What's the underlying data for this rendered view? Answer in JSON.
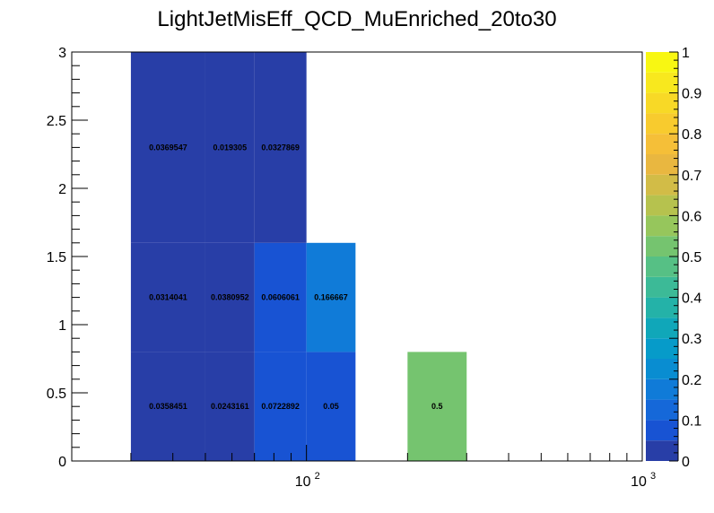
{
  "chart_data": {
    "type": "heatmap",
    "title": "LightJetMisEff_QCD_MuEnriched_20to30",
    "xlabel": "",
    "ylabel": "",
    "x_scale": "log",
    "xlim": [
      20,
      1000
    ],
    "ylim": [
      0,
      3
    ],
    "x_tick_labels": [
      "10",
      "2",
      "10",
      "3"
    ],
    "y_tick_labels": [
      "0",
      "0.5",
      "1",
      "1.5",
      "2",
      "2.5",
      "3"
    ],
    "y_ticks": [
      0,
      0.5,
      1,
      1.5,
      2,
      2.5,
      3
    ],
    "colorbar": {
      "range": [
        0,
        1
      ],
      "tick_labels": [
        "0",
        "0.1",
        "0.2",
        "0.3",
        "0.4",
        "0.5",
        "0.6",
        "0.7",
        "0.8",
        "0.9",
        "1"
      ],
      "ticks": [
        0,
        0.1,
        0.2,
        0.3,
        0.4,
        0.5,
        0.6,
        0.7,
        0.8,
        0.9,
        1
      ]
    },
    "bins": [
      {
        "x": [
          30,
          50
        ],
        "y": [
          0,
          0.8
        ],
        "value": 0.0358451,
        "label": "0.0358451"
      },
      {
        "x": [
          50,
          70
        ],
        "y": [
          0,
          0.8
        ],
        "value": 0.0243161,
        "label": "0.0243161"
      },
      {
        "x": [
          70,
          100
        ],
        "y": [
          0,
          0.8
        ],
        "value": 0.0722892,
        "label": "0.0722892"
      },
      {
        "x": [
          100,
          140
        ],
        "y": [
          0,
          0.8
        ],
        "value": 0.05,
        "label": "0.05"
      },
      {
        "x": [
          200,
          300
        ],
        "y": [
          0,
          0.8
        ],
        "value": 0.5,
        "label": "0.5"
      },
      {
        "x": [
          30,
          50
        ],
        "y": [
          0.8,
          1.6
        ],
        "value": 0.0314041,
        "label": "0.0314041"
      },
      {
        "x": [
          50,
          70
        ],
        "y": [
          0.8,
          1.6
        ],
        "value": 0.0380952,
        "label": "0.0380952"
      },
      {
        "x": [
          70,
          100
        ],
        "y": [
          0.8,
          1.6
        ],
        "value": 0.0606061,
        "label": "0.0606061"
      },
      {
        "x": [
          100,
          140
        ],
        "y": [
          0.8,
          1.6
        ],
        "value": 0.166667,
        "label": "0.166667"
      },
      {
        "x": [
          30,
          50
        ],
        "y": [
          1.6,
          3
        ],
        "value": 0.0369547,
        "label": "0.0369547"
      },
      {
        "x": [
          50,
          70
        ],
        "y": [
          1.6,
          3
        ],
        "value": 0.019305,
        "label": "0.019305"
      },
      {
        "x": [
          70,
          100
        ],
        "y": [
          1.6,
          3
        ],
        "value": 0.0327869,
        "label": "0.0327869"
      }
    ]
  }
}
